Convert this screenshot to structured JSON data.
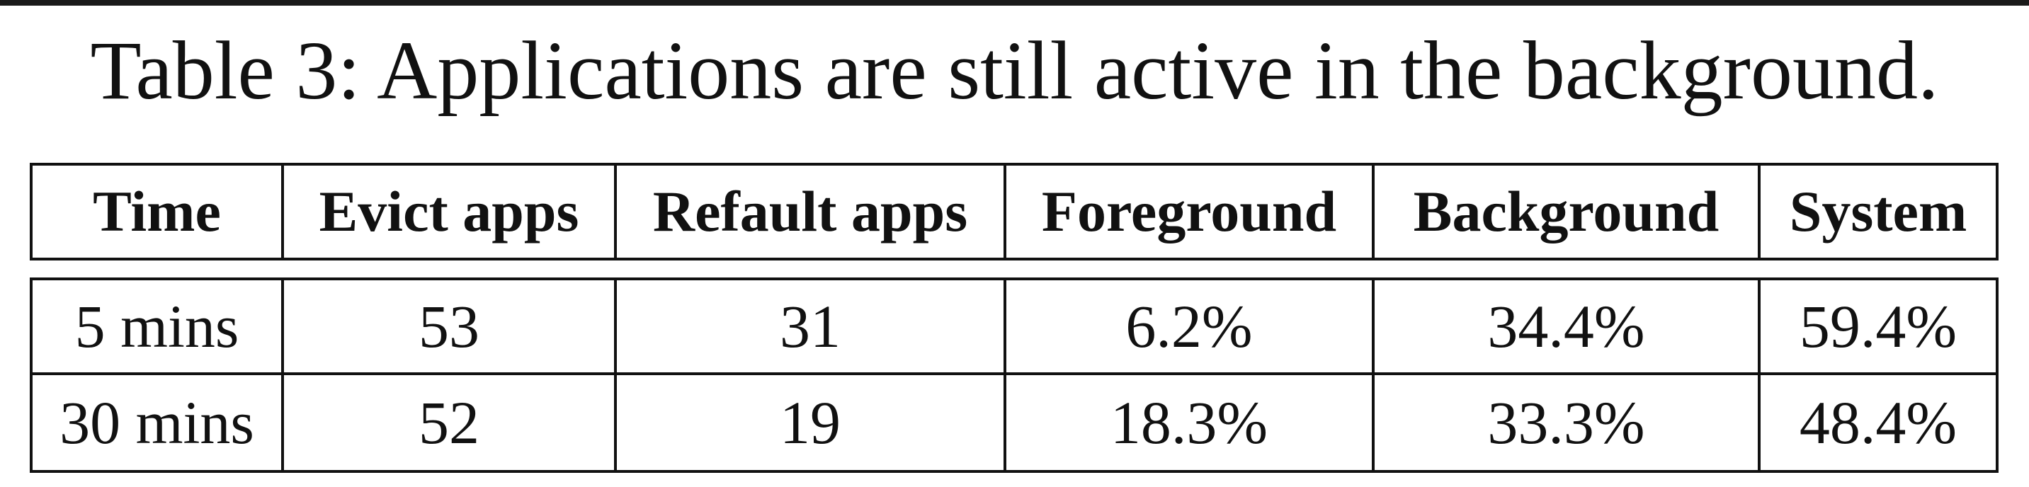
{
  "caption": "Table 3: Applications are still active in the background.",
  "table": {
    "headers": [
      "Time",
      "Evict apps",
      "Refault apps",
      "Foreground",
      "Background",
      "System"
    ],
    "rows": [
      [
        "5 mins",
        "53",
        "31",
        "6.2%",
        "34.4%",
        "59.4%"
      ],
      [
        "30 mins",
        "52",
        "19",
        "18.3%",
        "33.3%",
        "48.4%"
      ]
    ]
  }
}
